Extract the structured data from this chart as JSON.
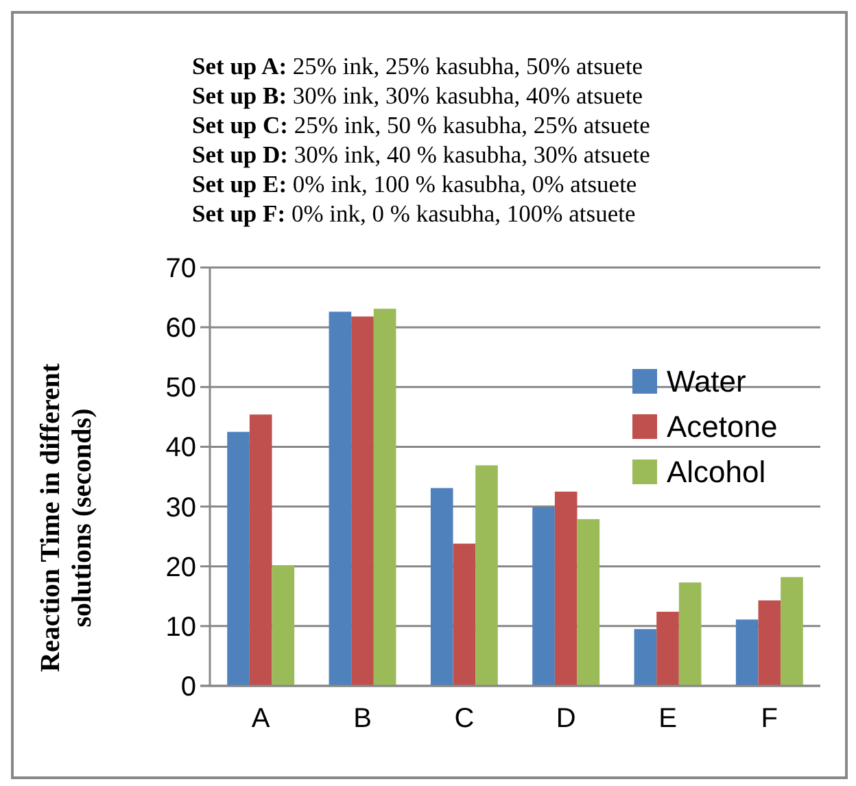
{
  "chart_data": {
    "type": "bar",
    "ylabel": "Reaction Time in different solutions (seconds)",
    "annotations": [
      "Set up A: 25%  ink, 25%  kasubha, 50%  atsuete",
      "Set up B: 30%  ink, 30%  kasubha, 40%  atsuete",
      "Set up C: 25%  ink, 50 % kasubha, 25% atsuete",
      "Set up D: 30%  ink, 40 % kasubha, 30% atsuete",
      "Set up E: 0%  ink, 100 % kasubha, 0% atsuete",
      "Set up F: 0%  ink, 0 % kasubha, 100% atsuete"
    ],
    "categories": [
      "A",
      "B",
      "C",
      "D",
      "E",
      "F"
    ],
    "series": [
      {
        "name": "Water",
        "color": "#4f81bd",
        "values": [
          42.5,
          62.6,
          33.1,
          29.9,
          9.5,
          11.1
        ]
      },
      {
        "name": "Acetone",
        "color": "#c0504d",
        "values": [
          45.4,
          61.8,
          23.8,
          32.5,
          12.4,
          14.3
        ]
      },
      {
        "name": "Alcohol",
        "color": "#9bbb59",
        "values": [
          20.1,
          63.1,
          36.9,
          27.9,
          17.3,
          18.2
        ]
      }
    ],
    "ylim": [
      0,
      70
    ],
    "yticks": [
      0,
      10,
      20,
      30,
      40,
      50,
      60,
      70
    ],
    "grid": "y",
    "legend": "right"
  }
}
